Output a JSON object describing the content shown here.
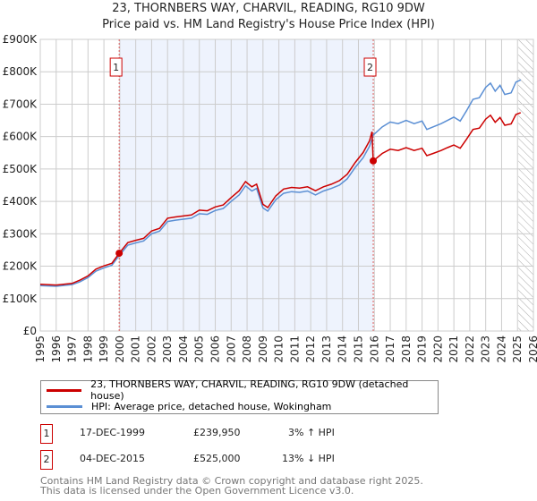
{
  "chart_data": {
    "type": "line",
    "title": "23, THORNBERS WAY, CHARVIL, READING, RG10 9DW",
    "subtitle": "Price paid vs. HM Land Registry's House Price Index (HPI)",
    "xlabel": "",
    "ylabel": "",
    "xlim": [
      1995,
      2026
    ],
    "ylim": [
      0,
      900000
    ],
    "y_ticks": [
      {
        "v": 0,
        "l": "£0"
      },
      {
        "v": 100000,
        "l": "£100K"
      },
      {
        "v": 200000,
        "l": "£200K"
      },
      {
        "v": 300000,
        "l": "£300K"
      },
      {
        "v": 400000,
        "l": "£400K"
      },
      {
        "v": 500000,
        "l": "£500K"
      },
      {
        "v": 600000,
        "l": "£600K"
      },
      {
        "v": 700000,
        "l": "£700K"
      },
      {
        "v": 800000,
        "l": "£800K"
      },
      {
        "v": 900000,
        "l": "£900K"
      }
    ],
    "x_ticks": [
      "1995",
      "1996",
      "1997",
      "1998",
      "1999",
      "2000",
      "2001",
      "2002",
      "2003",
      "2004",
      "2005",
      "2006",
      "2007",
      "2008",
      "2009",
      "2010",
      "2011",
      "2012",
      "2013",
      "2014",
      "2015",
      "2016",
      "2017",
      "2018",
      "2019",
      "2020",
      "2021",
      "2022",
      "2023",
      "2024",
      "2025",
      "2026"
    ],
    "grid": true,
    "shaded_period": [
      1999.96,
      2015.93
    ],
    "forecast_hatch_from": 2025.05,
    "series": [
      {
        "name": "23, THORNBERS WAY, CHARVIL, READING, RG10 9DW (detached house)",
        "color": "#cc0000",
        "x": [
          1995,
          1996,
          1997,
          1997.5,
          1998,
          1998.5,
          1999,
          1999.5,
          1999.96,
          2000.5,
          2001,
          2001.5,
          2002,
          2002.5,
          2003,
          2003.5,
          2004,
          2004.5,
          2005,
          2005.5,
          2006,
          2006.5,
          2007,
          2007.5,
          2007.9,
          2008.3,
          2008.6,
          2009,
          2009.3,
          2009.8,
          2010.3,
          2010.8,
          2011.3,
          2011.8,
          2012.3,
          2012.8,
          2013.3,
          2013.8,
          2014.3,
          2014.8,
          2015.3,
          2015.7,
          2015.85,
          2015.93,
          2016.5,
          2017,
          2017.5,
          2018,
          2018.5,
          2019,
          2019.3,
          2019.7,
          2020.2,
          2020.6,
          2021,
          2021.4,
          2021.8,
          2022.2,
          2022.6,
          2023,
          2023.3,
          2023.6,
          2023.9,
          2024.2,
          2024.6,
          2024.9,
          2025.2
        ],
        "y": [
          144000,
          142000,
          147000,
          157000,
          170000,
          191000,
          201000,
          209000,
          239950,
          273000,
          280000,
          286000,
          309000,
          317000,
          348000,
          352000,
          355000,
          358000,
          373000,
          371000,
          383000,
          389000,
          412000,
          433000,
          461000,
          445000,
          453000,
          391000,
          381000,
          417000,
          438000,
          443000,
          441000,
          445000,
          433000,
          445000,
          453000,
          464000,
          484000,
          520000,
          551000,
          587000,
          615000,
          525000,
          548000,
          561000,
          557000,
          566000,
          557000,
          564000,
          541000,
          548000,
          557000,
          566000,
          574000,
          564000,
          592000,
          622000,
          626000,
          654000,
          666000,
          644000,
          659000,
          635000,
          639000,
          668000,
          674000
        ]
      },
      {
        "name": "HPI: Average price, detached house, Wokingham",
        "color": "#5b8fd4",
        "x": [
          1995,
          1996,
          1997,
          1997.5,
          1998,
          1998.5,
          1999,
          1999.5,
          1999.96,
          2000.5,
          2001,
          2001.5,
          2002,
          2002.5,
          2003,
          2003.5,
          2004,
          2004.5,
          2005,
          2005.5,
          2006,
          2006.5,
          2007,
          2007.5,
          2007.9,
          2008.3,
          2008.6,
          2009,
          2009.3,
          2009.8,
          2010.3,
          2010.8,
          2011.3,
          2011.8,
          2012.3,
          2012.8,
          2013.3,
          2013.8,
          2014.3,
          2014.8,
          2015.3,
          2015.7,
          2015.93,
          2016.5,
          2017,
          2017.5,
          2018,
          2018.5,
          2019,
          2019.3,
          2019.7,
          2020.2,
          2020.6,
          2021,
          2021.4,
          2021.8,
          2022.2,
          2022.6,
          2023,
          2023.3,
          2023.6,
          2023.9,
          2024.2,
          2024.6,
          2024.9,
          2025.2
        ],
        "y": [
          140000,
          138000,
          143000,
          152000,
          165000,
          185000,
          195000,
          203000,
          233000,
          265000,
          272000,
          278000,
          300000,
          308000,
          338000,
          342000,
          345000,
          348000,
          362000,
          360000,
          372000,
          378000,
          400000,
          420000,
          448000,
          432000,
          440000,
          380000,
          370000,
          405000,
          425000,
          430000,
          428000,
          432000,
          420000,
          432000,
          440000,
          450000,
          470000,
          505000,
          535000,
          570000,
          605000,
          630000,
          645000,
          640000,
          650000,
          640000,
          648000,
          622000,
          630000,
          640000,
          650000,
          660000,
          648000,
          680000,
          715000,
          720000,
          752000,
          765000,
          740000,
          758000,
          730000,
          735000,
          768000,
          775000
        ]
      }
    ],
    "markers": [
      {
        "label": "1",
        "x": 1999.96,
        "y": 239950
      },
      {
        "label": "2",
        "x": 2015.93,
        "y": 525000
      }
    ],
    "legend": "bottom-outside"
  },
  "legend": {
    "property": "23, THORNBERS WAY, CHARVIL, READING, RG10 9DW (detached house)",
    "hpi": "HPI: Average price, detached house, Wokingham"
  },
  "transactions": [
    {
      "num": "1",
      "date": "17-DEC-1999",
      "price": "£239,950",
      "hpi": "3% ↑ HPI"
    },
    {
      "num": "2",
      "date": "04-DEC-2015",
      "price": "£525,000",
      "hpi": "13% ↓ HPI"
    }
  ],
  "footer": [
    "Contains HM Land Registry data © Crown copyright and database right 2025.",
    "This data is licensed under the Open Government Licence v3.0."
  ]
}
